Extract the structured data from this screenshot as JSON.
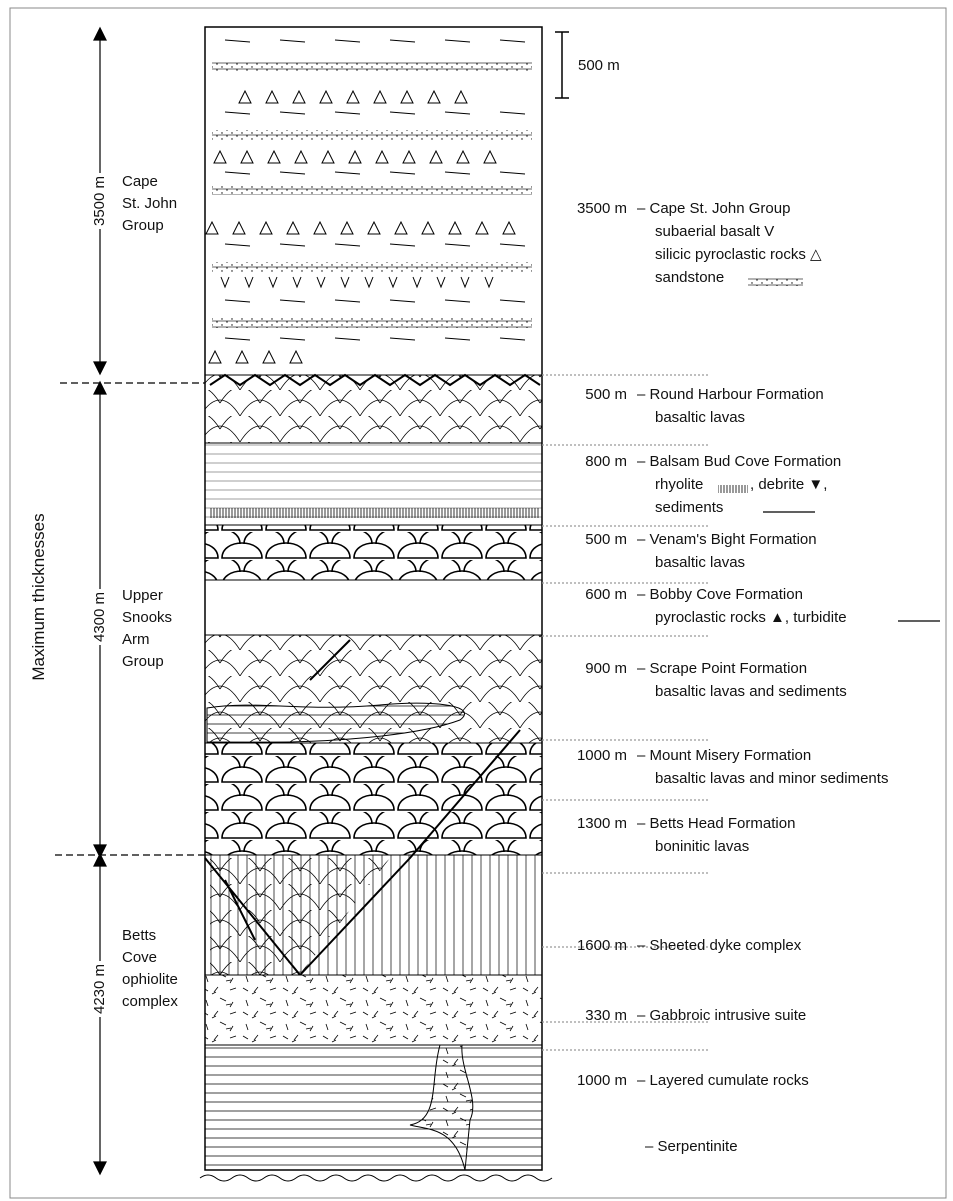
{
  "scale_bar": "500 m",
  "axis_title": "Maximum thicknesses",
  "groups": [
    {
      "thickness": "3500 m",
      "name": [
        "Cape",
        "St. John",
        "Group"
      ]
    },
    {
      "thickness": "4300 m",
      "name": [
        "Upper",
        "Snooks",
        "Arm",
        "Group"
      ]
    },
    {
      "thickness": "4230 m",
      "name": [
        "Betts",
        "Cove",
        "ophiolite",
        "complex"
      ]
    }
  ],
  "units": [
    {
      "thickness": "3500 m",
      "lines": [
        "– Cape St. John Group",
        "subaerial basalt V",
        "silicic pyroclastic rocks △",
        "sandstone"
      ]
    },
    {
      "thickness": "500 m",
      "lines": [
        "– Round Harbour Formation",
        "basaltic lavas"
      ]
    },
    {
      "thickness": "800 m",
      "lines": [
        "– Balsam Bud Cove Formation",
        "rhyolite",
        ", debrite ▼,",
        "sediments"
      ]
    },
    {
      "thickness": "500 m",
      "lines": [
        "– Venam's Bight Formation",
        "basaltic lavas"
      ]
    },
    {
      "thickness": "600 m",
      "lines": [
        "– Bobby Cove Formation",
        "pyroclastic rocks ▲, turbidite"
      ]
    },
    {
      "thickness": "900 m",
      "lines": [
        "– Scrape Point Formation",
        "basaltic lavas and sediments"
      ]
    },
    {
      "thickness": "1000 m",
      "lines": [
        "– Mount Misery  Formation",
        "basaltic lavas and minor sediments"
      ]
    },
    {
      "thickness": "1300 m",
      "lines": [
        "– Betts Head Formation",
        "boninitic lavas"
      ]
    },
    {
      "thickness": "1600 m",
      "lines": [
        "– Sheeted dyke complex"
      ]
    },
    {
      "thickness": "330 m",
      "lines": [
        "– Gabbroic intrusive suite"
      ]
    },
    {
      "thickness": "1000 m",
      "lines": [
        "– Layered cumulate rocks"
      ]
    },
    {
      "lines": [
        "– Serpentinite"
      ]
    }
  ]
}
